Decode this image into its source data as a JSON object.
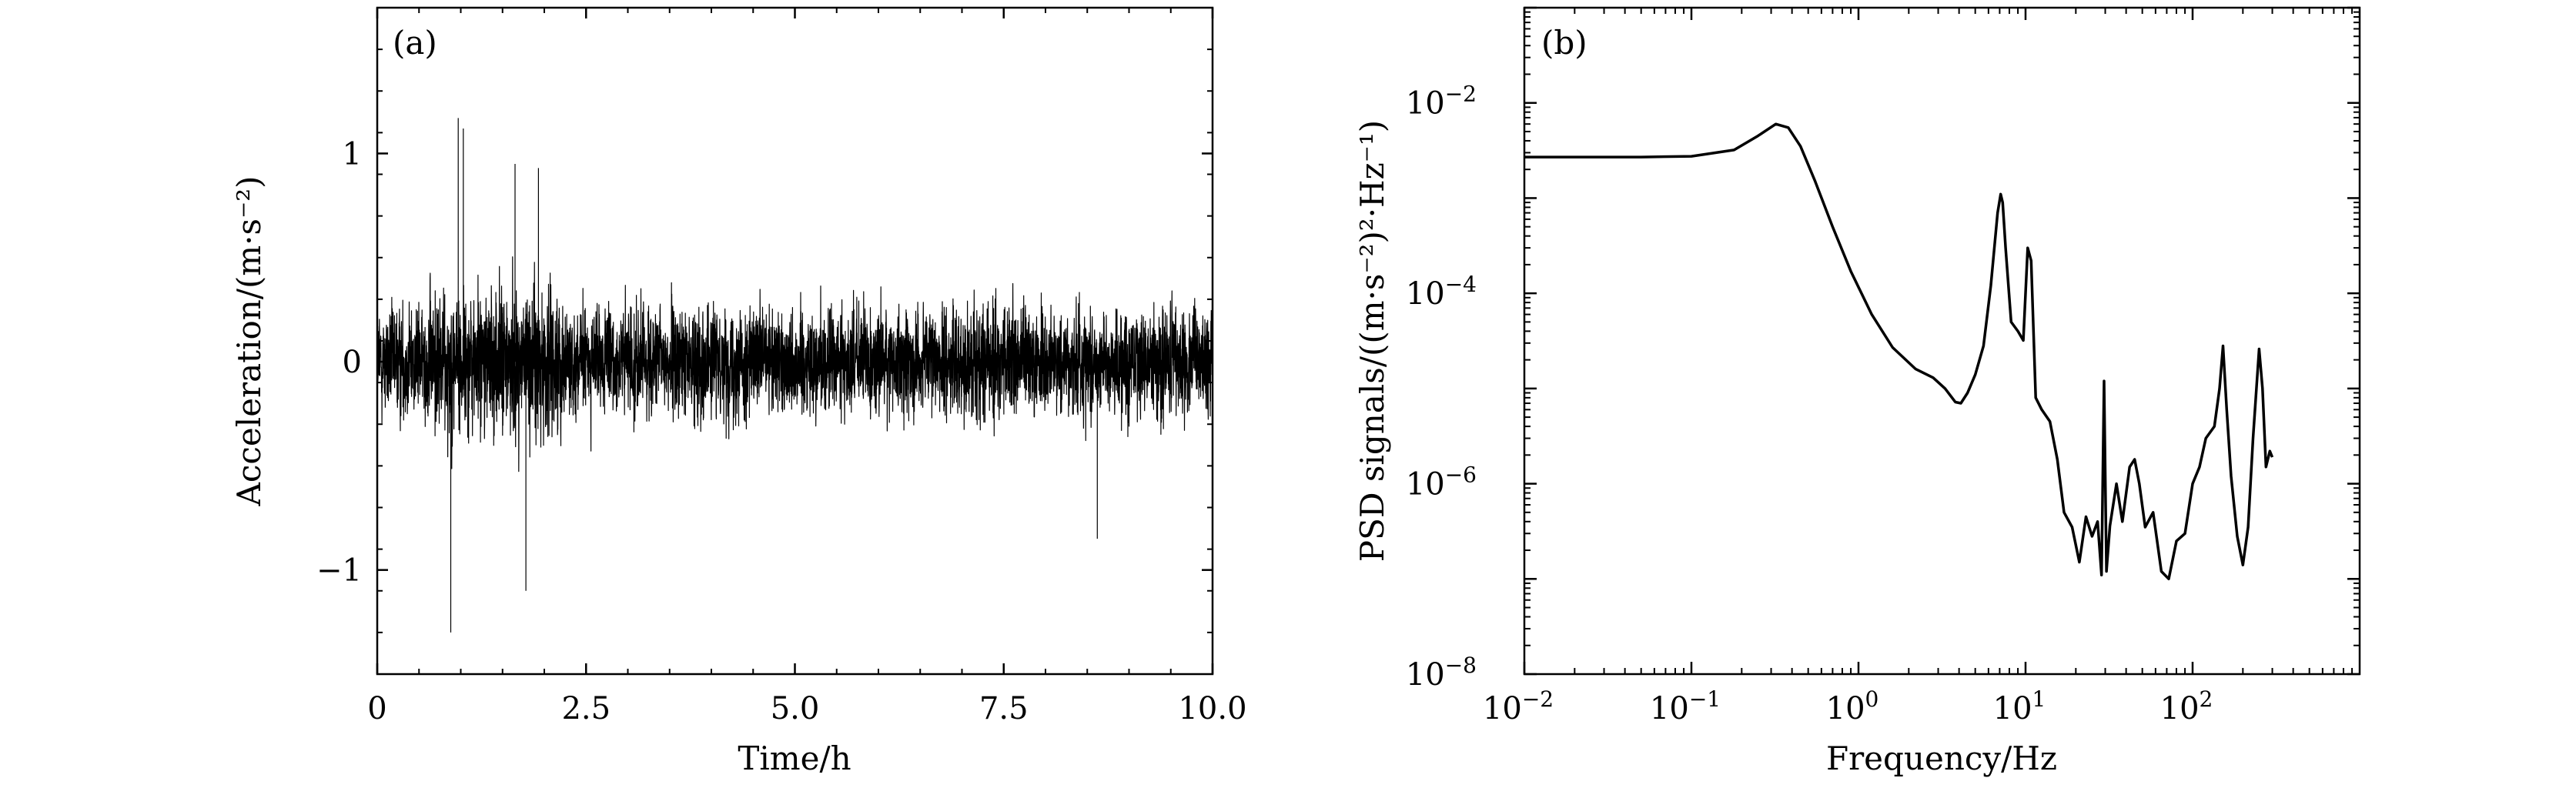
{
  "chart_data": [
    {
      "type": "line",
      "panel_label": "(a)",
      "xlabel": "Time/h",
      "ylabel": "Acceleration/(m·s⁻²)",
      "xlim": [
        0,
        10
      ],
      "ylim": [
        -1.5,
        1.7
      ],
      "x_ticks": [
        0,
        2.5,
        5.0,
        7.5,
        10.0
      ],
      "x_tick_labels": [
        "0",
        "2.5",
        "5.0",
        "7.5",
        "10.0"
      ],
      "y_ticks": [
        -1,
        0,
        1
      ],
      "y_tick_labels": [
        "−1",
        "0",
        "1"
      ],
      "grid": false,
      "color": "#000000",
      "signal": {
        "kind": "noise",
        "base_amplitude": 0.4,
        "typical_envelope": [
          -0.5,
          0.5
        ],
        "peaks": [
          {
            "x": 0.88,
            "y": -1.3
          },
          {
            "x": 0.97,
            "y": 1.17
          },
          {
            "x": 1.03,
            "y": 1.12
          },
          {
            "x": 1.65,
            "y": 0.95
          },
          {
            "x": 1.78,
            "y": -1.1
          },
          {
            "x": 1.93,
            "y": 0.93
          },
          {
            "x": 8.62,
            "y": -0.85
          }
        ]
      }
    },
    {
      "type": "line",
      "panel_label": "(b)",
      "xlabel": "Frequency/Hz",
      "ylabel": "PSD signals/((m·s⁻²)²·Hz⁻¹)",
      "xscale": "log",
      "yscale": "log",
      "xlim": [
        0.01,
        1000
      ],
      "ylim": [
        1e-08,
        0.1
      ],
      "x_tick_labels": [
        "10",
        "10",
        "10",
        "10",
        "10"
      ],
      "x_tick_exponents": [
        "−2",
        "−1",
        "0",
        "1",
        "2"
      ],
      "y_tick_labels": [
        "10",
        "10",
        "10",
        "10"
      ],
      "y_tick_exponents": [
        "−8",
        "−6",
        "−4",
        "−2"
      ],
      "grid": false,
      "color": "#000000",
      "x": [
        0.01,
        0.05,
        0.1,
        0.18,
        0.25,
        0.32,
        0.38,
        0.45,
        0.55,
        0.7,
        0.9,
        1.2,
        1.6,
        2.2,
        2.8,
        3.3,
        3.8,
        4.1,
        4.5,
        5.0,
        5.6,
        6.2,
        6.8,
        7.1,
        7.3,
        7.6,
        8.2,
        9.0,
        9.7,
        10.3,
        10.8,
        11.5,
        12.5,
        14.0,
        15.5,
        17.0,
        19.0,
        21.0,
        23.0,
        25.0,
        27.0,
        28.5,
        29.5,
        30.5,
        32.0,
        35.0,
        38.0,
        42.0,
        45.0,
        48.0,
        52.0,
        58.0,
        65.0,
        72.0,
        80.0,
        90.0,
        100.0,
        110.0,
        120.0,
        135.0,
        145.0,
        152.0,
        160.0,
        170.0,
        185.0,
        200.0,
        215.0,
        230.0,
        250.0,
        262.0,
        275.0,
        290.0,
        300.0
      ],
      "y": [
        0.0027,
        0.0027,
        0.00275,
        0.0032,
        0.0045,
        0.006,
        0.0055,
        0.0035,
        0.0015,
        0.0005,
        0.00017,
        6e-05,
        2.7e-05,
        1.6e-05,
        1.3e-05,
        1e-05,
        7.2e-06,
        7e-06,
        9e-06,
        1.4e-05,
        2.8e-05,
        0.00012,
        0.0007,
        0.0011,
        0.0009,
        0.0003,
        5e-05,
        4e-05,
        3.2e-05,
        0.0003,
        0.00022,
        8e-06,
        6e-06,
        4.5e-06,
        1.8e-06,
        5e-07,
        3.5e-07,
        1.5e-07,
        4.5e-07,
        2.8e-07,
        4e-07,
        1.1e-07,
        1.2e-05,
        1.2e-07,
        3.6e-07,
        1e-06,
        4e-07,
        1.5e-06,
        1.8e-06,
        1e-06,
        3.5e-07,
        5e-07,
        1.2e-07,
        1e-07,
        2.5e-07,
        3e-07,
        1e-06,
        1.5e-06,
        3e-06,
        4e-06,
        1e-05,
        2.8e-05,
        6e-06,
        1.2e-06,
        2.8e-07,
        1.4e-07,
        3.5e-07,
        3e-06,
        2.6e-05,
        1e-05,
        1.5e-06,
        2.2e-06,
        1.9e-06
      ]
    }
  ]
}
